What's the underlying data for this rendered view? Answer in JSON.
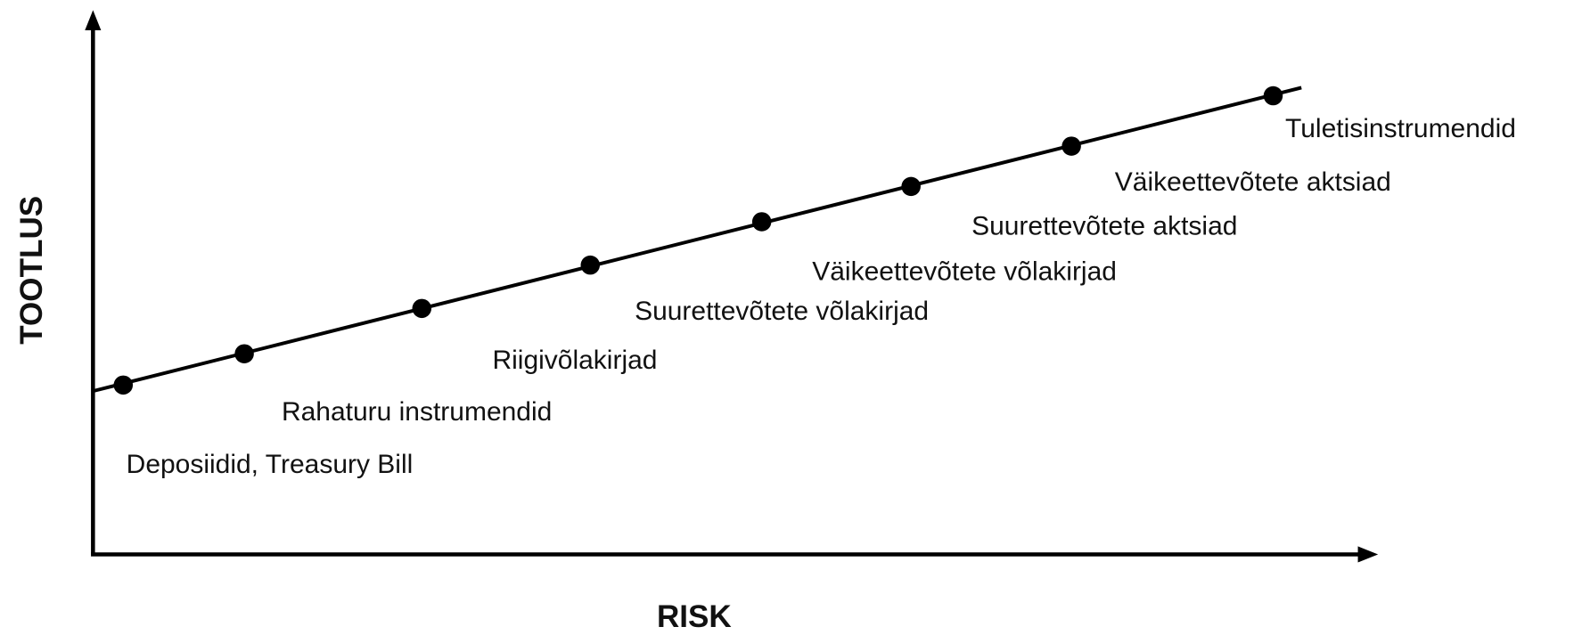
{
  "axes": {
    "x_label": "RISK",
    "y_label": "TOOTLUS"
  },
  "points": [
    {
      "label": "Deposiidid, Treasury Bill"
    },
    {
      "label": "Rahaturu instrumendid"
    },
    {
      "label": "Riigivõlakirjad"
    },
    {
      "label": "Suurettevõtete võlakirjad"
    },
    {
      "label": "Väikeettevõtete võlakirjad"
    },
    {
      "label": "Suurettevõtete aktsiad"
    },
    {
      "label": "Väikeettevõtete aktsiad"
    },
    {
      "label": "Tuletisinstrumendid"
    }
  ]
}
